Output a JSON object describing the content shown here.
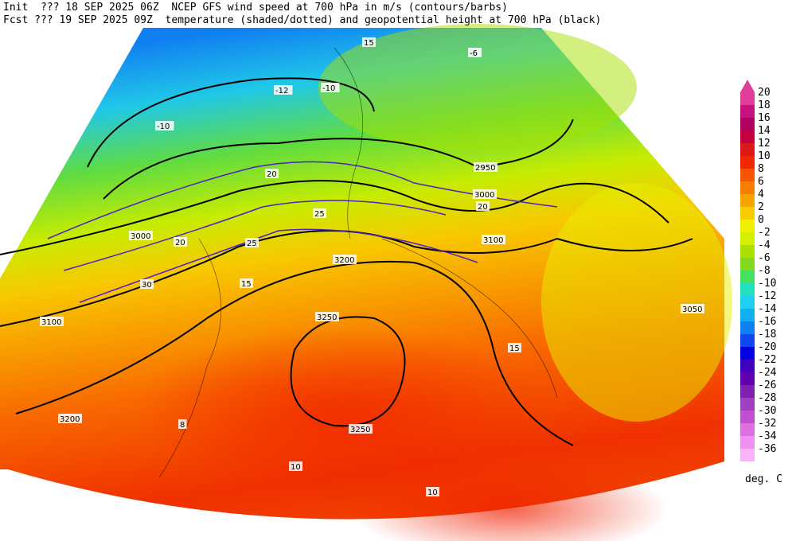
{
  "header": {
    "line1": "Init  ??? 18 SEP 2025 06Z  NCEP GFS wind speed at 700 hPa in m/s (contours/barbs)",
    "line2": "Fcst ??? 19 SEP 2025 09Z  temperature (shaded/dotted) and geopotential height at 700 hPa (black)"
  },
  "colorbar": {
    "labels": [
      20,
      18,
      16,
      14,
      12,
      10,
      8,
      6,
      4,
      2,
      0,
      -2,
      -4,
      -6,
      -8,
      -10,
      -12,
      -14,
      -16,
      -18,
      -20,
      -22,
      -24,
      -26,
      -28,
      -30,
      -32,
      -34,
      -36
    ],
    "colors": [
      "#e03c9c",
      "#c8107e",
      "#b00060",
      "#c40040",
      "#dc1818",
      "#f02800",
      "#f85400",
      "#f87c00",
      "#f8a400",
      "#f8cc00",
      "#f0f000",
      "#d4f000",
      "#ace000",
      "#84d820",
      "#44e060",
      "#20e0c0",
      "#20d0f0",
      "#10b0f0",
      "#1080f0",
      "#1048f0",
      "#0000e0",
      "#4000c0",
      "#6000b0",
      "#8020b0",
      "#a040c0",
      "#c050d0",
      "#e070e0",
      "#f090f0",
      "#f8b4f8"
    ],
    "unit": "deg. C"
  },
  "map_labels": [
    "2950",
    "3000",
    "3000",
    "3050",
    "3100",
    "3100",
    "3200",
    "3200",
    "3250",
    "3250",
    "15",
    "15",
    "15",
    "20",
    "20",
    "20",
    "25",
    "25",
    "30",
    "-10",
    "-12",
    "-10",
    "-6",
    "8",
    "10",
    "10"
  ]
}
